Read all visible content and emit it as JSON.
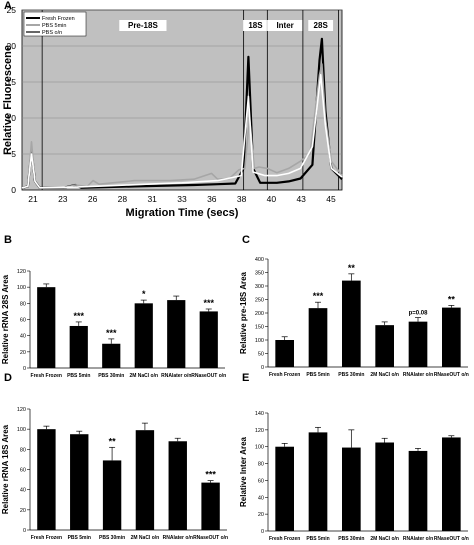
{
  "chart_data": [
    {
      "panel": "A",
      "type": "line",
      "xlabel": "Migration Time (secs)",
      "ylabel": "Relative Fluorescene",
      "xlim": [
        20.5,
        47.5
      ],
      "ylim": [
        0,
        25
      ],
      "x_ticks": [
        "21",
        "23",
        "26",
        "28",
        "31",
        "33",
        "36",
        "38",
        "40",
        "43",
        "45"
      ],
      "y_ticks": [
        "0",
        "5",
        "10",
        "15",
        "20",
        "25"
      ],
      "regions": [
        {
          "label": "Pre-18S",
          "x0": 22.2,
          "x1": 39.2
        },
        {
          "label": "18S",
          "x0": 39.2,
          "x1": 41.2
        },
        {
          "label": "Inter",
          "x0": 41.2,
          "x1": 44.2
        },
        {
          "label": "28S",
          "x0": 44.2,
          "x1": 47.2
        }
      ],
      "legend": [
        "Fresh Frozen",
        "PBS 5min",
        "PBS o/n"
      ],
      "series": [
        {
          "name": "Fresh Frozen",
          "color": "#000000",
          "points": [
            [
              20.5,
              0.3
            ],
            [
              21,
              0.5
            ],
            [
              21.3,
              5.5
            ],
            [
              21.6,
              1.2
            ],
            [
              22,
              0.3
            ],
            [
              24,
              0.3
            ],
            [
              25,
              0.7
            ],
            [
              25.5,
              0.3
            ],
            [
              30,
              0.5
            ],
            [
              35,
              0.7
            ],
            [
              37,
              0.8
            ],
            [
              38.5,
              0.9
            ],
            [
              39.2,
              3
            ],
            [
              39.6,
              18.5
            ],
            [
              40,
              3
            ],
            [
              40.6,
              1
            ],
            [
              42,
              1
            ],
            [
              43,
              1.2
            ],
            [
              44,
              1.6
            ],
            [
              45,
              3.5
            ],
            [
              45.6,
              18
            ],
            [
              45.8,
              21
            ],
            [
              46.1,
              11
            ],
            [
              46.6,
              3
            ],
            [
              47.5,
              1.5
            ]
          ]
        },
        {
          "name": "PBS 5min",
          "color": "#a6a6a6",
          "points": [
            [
              20.5,
              0.3
            ],
            [
              21,
              0.5
            ],
            [
              21.3,
              6.7
            ],
            [
              21.6,
              1.2
            ],
            [
              22,
              0.3
            ],
            [
              24,
              0.3
            ],
            [
              25,
              0.7
            ],
            [
              26,
              0.5
            ],
            [
              26.5,
              1.3
            ],
            [
              27,
              0.8
            ],
            [
              30,
              1.3
            ],
            [
              33,
              1.3
            ],
            [
              35,
              1.5
            ],
            [
              36.5,
              2.3
            ],
            [
              37,
              1.5
            ],
            [
              38,
              1.6
            ],
            [
              38.8,
              2.8
            ],
            [
              39.3,
              3
            ],
            [
              39.7,
              10
            ],
            [
              40.1,
              3
            ],
            [
              40.5,
              3.2
            ],
            [
              41.2,
              3
            ],
            [
              42,
              2.4
            ],
            [
              43,
              3
            ],
            [
              44,
              4
            ],
            [
              44.8,
              5
            ],
            [
              45.6,
              16
            ],
            [
              45.8,
              17.5
            ],
            [
              46.1,
              10
            ],
            [
              46.6,
              4
            ],
            [
              47.5,
              2
            ]
          ]
        },
        {
          "name": "PBS o/n",
          "color": "#ffffff",
          "points": [
            [
              20.5,
              0.3
            ],
            [
              21,
              0.5
            ],
            [
              21.3,
              5
            ],
            [
              21.6,
              1.2
            ],
            [
              22,
              0.3
            ],
            [
              25,
              0.4
            ],
            [
              28,
              0.6
            ],
            [
              31,
              0.8
            ],
            [
              34,
              1
            ],
            [
              37,
              1.3
            ],
            [
              39,
              2
            ],
            [
              39.6,
              13
            ],
            [
              40,
              2.5
            ],
            [
              41,
              2
            ],
            [
              42,
              2
            ],
            [
              43,
              2.3
            ],
            [
              44,
              3
            ],
            [
              45,
              6
            ],
            [
              45.7,
              16
            ],
            [
              46.1,
              9
            ],
            [
              46.6,
              3
            ],
            [
              47.5,
              1.8
            ]
          ]
        }
      ]
    },
    {
      "panel": "B",
      "type": "bar",
      "ylabel": "Relative rRNA 28S Area",
      "ylim": [
        0,
        120
      ],
      "y_ticks": [
        "0",
        "20",
        "40",
        "60",
        "80",
        "100",
        "120"
      ],
      "categories": [
        "Fresh Frozen",
        "PBS 5min",
        "PBS 30min",
        "2M NaCl o/n",
        "RNAlater o/n",
        "RNaseOUT o/n"
      ],
      "values": [
        100,
        52,
        30,
        80,
        84,
        70
      ],
      "errors": [
        4,
        5,
        6,
        4,
        5,
        3
      ],
      "annotations": [
        "",
        "***",
        "***",
        "*",
        "",
        "***"
      ]
    },
    {
      "panel": "C",
      "type": "bar",
      "ylabel": "Relative pre-18S Area",
      "ylim": [
        0,
        400
      ],
      "y_ticks": [
        "0",
        "50",
        "100",
        "150",
        "200",
        "250",
        "300",
        "350",
        "400"
      ],
      "categories": [
        "Fresh Frozen",
        "PBS 5min",
        "PBS 30min",
        "2M NaCl o/n",
        "RNAlater o/n",
        "RNaseOUT o/n"
      ],
      "values": [
        100,
        218,
        320,
        155,
        168,
        220
      ],
      "errors": [
        12,
        22,
        25,
        12,
        15,
        8
      ],
      "annotations": [
        "",
        "***",
        "**",
        "",
        "p=0.08",
        "**"
      ]
    },
    {
      "panel": "D",
      "type": "bar",
      "ylabel": "Relative rRNA 18S Area",
      "ylim": [
        0,
        120
      ],
      "y_ticks": [
        "0",
        "20",
        "40",
        "60",
        "80",
        "100",
        "120"
      ],
      "categories": [
        "Fresh Frozen",
        "PBS 5min",
        "PBS 30min",
        "2M NaCl o/n",
        "RNAlater o/n",
        "RNaseOUT o/n"
      ],
      "values": [
        100,
        95,
        69,
        99,
        88,
        47
      ],
      "errors": [
        3,
        3,
        13,
        7,
        3,
        2
      ],
      "annotations": [
        "",
        "",
        "**",
        "",
        "",
        "***"
      ]
    },
    {
      "panel": "E",
      "type": "bar",
      "ylabel": "Relative Inter Area",
      "ylim": [
        0,
        140
      ],
      "y_ticks": [
        "0",
        "20",
        "40",
        "60",
        "80",
        "100",
        "120",
        "140"
      ],
      "categories": [
        "Fresh Frozen",
        "PBS 5min",
        "PBS 30min",
        "2M NaCl o/n",
        "RNAlater o/n",
        "RNaseOUT o/n"
      ],
      "values": [
        100,
        117,
        99,
        105,
        95,
        111
      ],
      "errors": [
        4,
        6,
        21,
        5,
        3,
        2
      ],
      "annotations": [
        "",
        "",
        "",
        "",
        "",
        ""
      ]
    }
  ]
}
